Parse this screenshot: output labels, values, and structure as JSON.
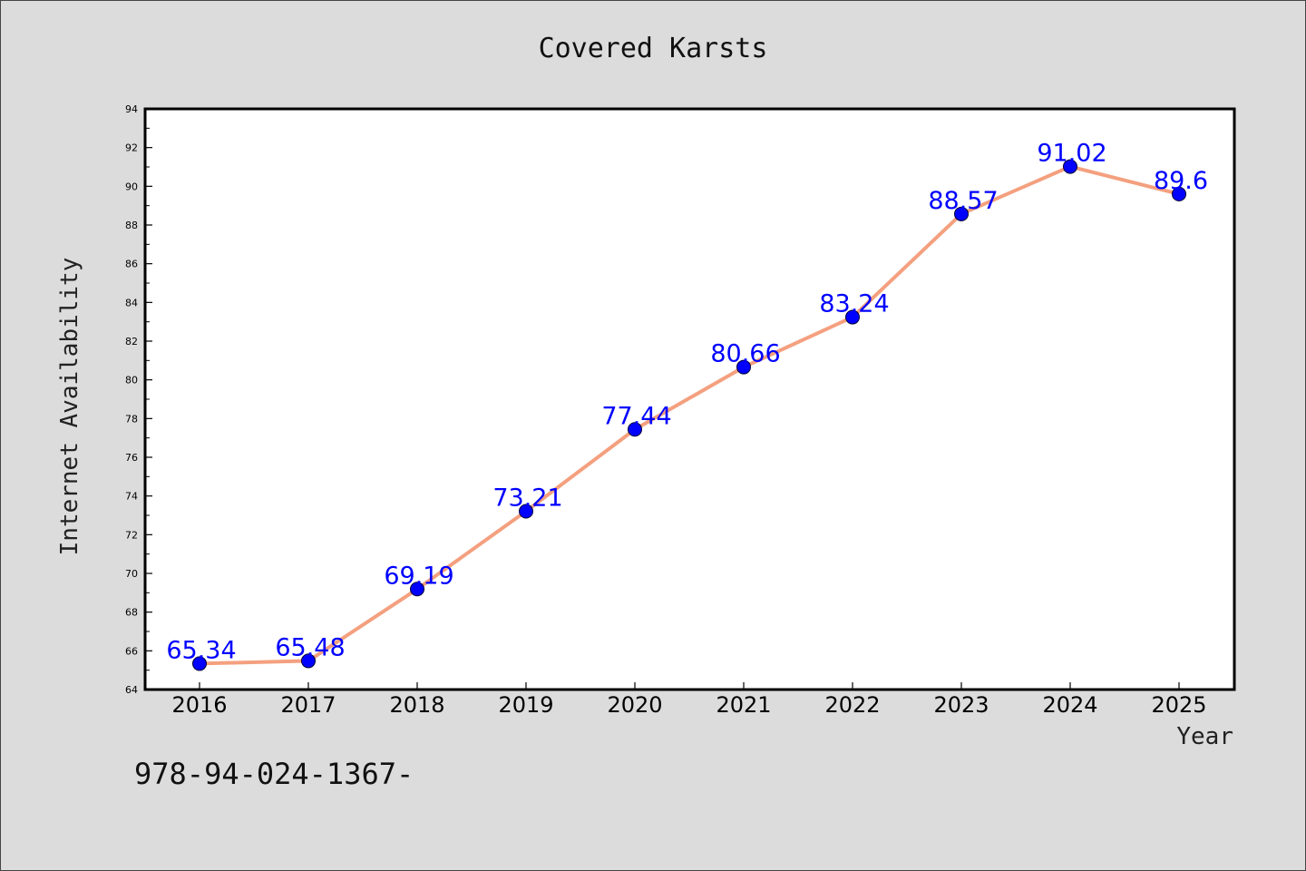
{
  "chart_data": {
    "type": "line",
    "title": "Covered Karsts",
    "xlabel": "Year",
    "ylabel": "Internet Availability",
    "categories": [
      "2016",
      "2017",
      "2018",
      "2019",
      "2020",
      "2021",
      "2022",
      "2023",
      "2024",
      "2025"
    ],
    "series": [
      {
        "values": [
          65.34,
          65.48,
          69.19,
          73.21,
          77.44,
          80.66,
          83.24,
          88.57,
          91.02,
          89.6
        ],
        "data_labels": [
          "65.34",
          "65.48",
          "69.19",
          "73.21",
          "77.44",
          "80.66",
          "83.24",
          "88.57",
          "91.02",
          "89.6"
        ],
        "line_color": "#f4a07f",
        "marker_color": "#0000ff"
      }
    ],
    "ylim": [
      64,
      94
    ],
    "yticks": [
      64,
      66,
      68,
      70,
      72,
      74,
      76,
      78,
      80,
      82,
      84,
      86,
      88,
      90,
      92,
      94
    ],
    "grid": false,
    "legend": "none",
    "footer_text": "978-94-024-1367-",
    "colors": {
      "figure_background": "#dcdcdc",
      "plot_background": "#ffffff",
      "axes_frame": "#000000",
      "line": "#f4a07f",
      "marker": "#0000ff",
      "data_label": "#0000ff"
    }
  }
}
